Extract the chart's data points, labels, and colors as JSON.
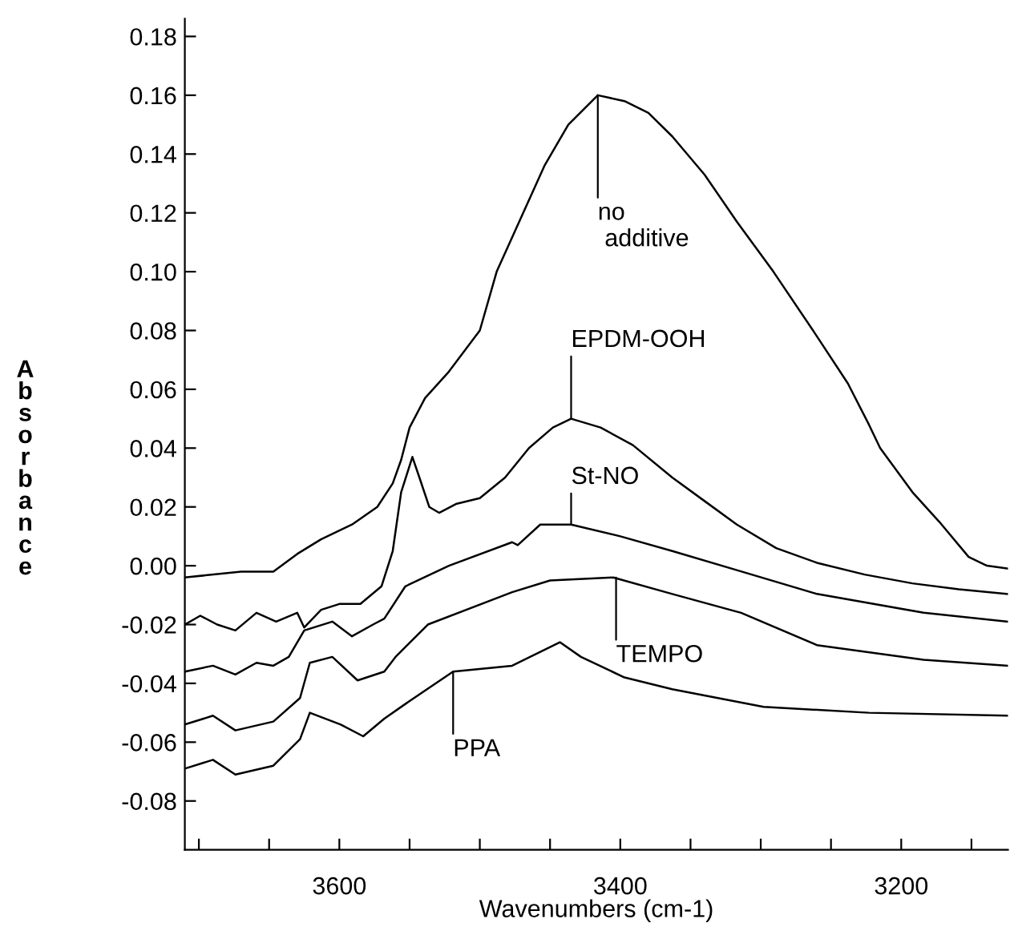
{
  "chart_data": {
    "type": "line",
    "xlabel": "Wavenumbers (cm-1)",
    "ylabel": "Absorbance",
    "xlim": [
      3710,
      3124
    ],
    "ylim": [
      -0.0966,
      0.186
    ],
    "xticks": [
      {
        "value": 3700,
        "label": null
      },
      {
        "value": 3650,
        "label": null
      },
      3600,
      {
        "value": 3550,
        "label": null
      },
      {
        "value": 3500,
        "label": null
      },
      {
        "value": 3450,
        "label": null
      },
      3400,
      {
        "value": 3350,
        "label": null
      },
      {
        "value": 3300,
        "label": null
      },
      {
        "value": 3250,
        "label": null
      },
      3200,
      {
        "value": 3150,
        "label": null
      }
    ],
    "yticks": [
      {
        "value": -0.08,
        "label": "-0.08"
      },
      {
        "value": -0.06,
        "label": "-0.06"
      },
      {
        "value": -0.04,
        "label": "-0.04"
      },
      {
        "value": -0.02,
        "label": "-0.02"
      },
      {
        "value": 0.0,
        "label": "0.00"
      },
      {
        "value": 0.02,
        "label": "0.02"
      },
      {
        "value": 0.04,
        "label": "0.04"
      },
      {
        "value": 0.06,
        "label": "0.06"
      },
      {
        "value": 0.08,
        "label": "0.08"
      },
      {
        "value": 0.1,
        "label": "0.10"
      },
      {
        "value": 0.12,
        "label": "0.12"
      },
      {
        "value": 0.14,
        "label": "0.14"
      },
      {
        "value": 0.16,
        "label": "0.16"
      },
      {
        "value": 0.18,
        "label": "0.18"
      }
    ],
    "grid": false,
    "legend": false,
    "marker": "none",
    "line_style": "solid",
    "series": [
      {
        "color": "#000000",
        "x": [
          3710,
          3670,
          3647,
          3630,
          3613,
          3591,
          3573,
          3562,
          3556,
          3550,
          3539,
          3522,
          3500,
          3488,
          3471,
          3454,
          3437,
          3416,
          3397,
          3380,
          3363,
          3340,
          3317,
          3291,
          3260,
          3238,
          3223,
          3215,
          3192,
          3173,
          3152,
          3139,
          3124
        ],
        "values": [
          -0.004,
          -0.002,
          -0.002,
          0.004,
          0.009,
          0.014,
          0.02,
          0.028,
          0.036,
          0.047,
          0.057,
          0.066,
          0.08,
          0.1,
          0.118,
          0.136,
          0.15,
          0.16,
          0.158,
          0.154,
          0.146,
          0.133,
          0.117,
          0.1,
          0.078,
          0.062,
          0.048,
          0.04,
          0.025,
          0.015,
          0.003,
          0.0,
          -0.001
        ]
      },
      {
        "color": "#000000",
        "x": [
          3710,
          3699,
          3687,
          3674,
          3659,
          3645,
          3630,
          3625,
          3613,
          3600,
          3585,
          3570,
          3562,
          3556,
          3548,
          3543,
          3536,
          3529,
          3517,
          3500,
          3482,
          3465,
          3448,
          3435,
          3414,
          3391,
          3363,
          3340,
          3317,
          3289,
          3260,
          3226,
          3192,
          3159,
          3124
        ],
        "values": [
          -0.02,
          -0.017,
          -0.02,
          -0.022,
          -0.016,
          -0.019,
          -0.016,
          -0.021,
          -0.015,
          -0.013,
          -0.013,
          -0.007,
          0.005,
          0.025,
          0.037,
          0.03,
          0.02,
          0.018,
          0.021,
          0.023,
          0.03,
          0.04,
          0.047,
          0.05,
          0.047,
          0.041,
          0.03,
          0.022,
          0.014,
          0.006,
          0.001,
          -0.003,
          -0.006,
          -0.008,
          -0.0096
        ]
      },
      {
        "color": "#000000",
        "x": [
          3710,
          3690,
          3674,
          3659,
          3647,
          3636,
          3625,
          3605,
          3591,
          3576,
          3568,
          3553,
          3522,
          3477,
          3473,
          3457,
          3435,
          3400,
          3363,
          3317,
          3260,
          3184,
          3124
        ],
        "values": [
          -0.036,
          -0.034,
          -0.037,
          -0.033,
          -0.034,
          -0.031,
          -0.022,
          -0.019,
          -0.024,
          -0.02,
          -0.018,
          -0.007,
          0.0,
          0.008,
          0.007,
          0.014,
          0.014,
          0.01,
          0.005,
          -0.0015,
          -0.0096,
          -0.016,
          -0.019
        ]
      },
      {
        "color": "#000000",
        "x": [
          3710,
          3690,
          3674,
          3647,
          3628,
          3621,
          3605,
          3587,
          3568,
          3560,
          3537,
          3477,
          3450,
          3405,
          3363,
          3314,
          3260,
          3184,
          3124
        ],
        "values": [
          -0.054,
          -0.051,
          -0.056,
          -0.053,
          -0.045,
          -0.033,
          -0.031,
          -0.039,
          -0.036,
          -0.031,
          -0.02,
          -0.009,
          -0.005,
          -0.004,
          -0.0096,
          -0.016,
          -0.027,
          -0.032,
          -0.034
        ]
      },
      {
        "color": "#000000",
        "x": [
          3710,
          3690,
          3674,
          3647,
          3628,
          3621,
          3599,
          3583,
          3568,
          3553,
          3519,
          3477,
          3443,
          3428,
          3397,
          3363,
          3298,
          3223,
          3124
        ],
        "values": [
          -0.069,
          -0.066,
          -0.071,
          -0.068,
          -0.059,
          -0.05,
          -0.054,
          -0.058,
          -0.052,
          -0.047,
          -0.036,
          -0.034,
          -0.026,
          -0.031,
          -0.038,
          -0.042,
          -0.048,
          -0.05,
          -0.051
        ]
      }
    ],
    "annotations": [
      {
        "text": "no\n additive",
        "x": 3416,
        "y": 0.16
      },
      {
        "text": "EPDM-OOH",
        "x": 3435,
        "y": 0.05
      },
      {
        "text": "St-NO",
        "x": 3435,
        "y": 0.014
      },
      {
        "text": "TEMPO",
        "x": 3403,
        "y": -0.004
      },
      {
        "text": "PPA",
        "x": 3519,
        "y": -0.036
      }
    ]
  }
}
